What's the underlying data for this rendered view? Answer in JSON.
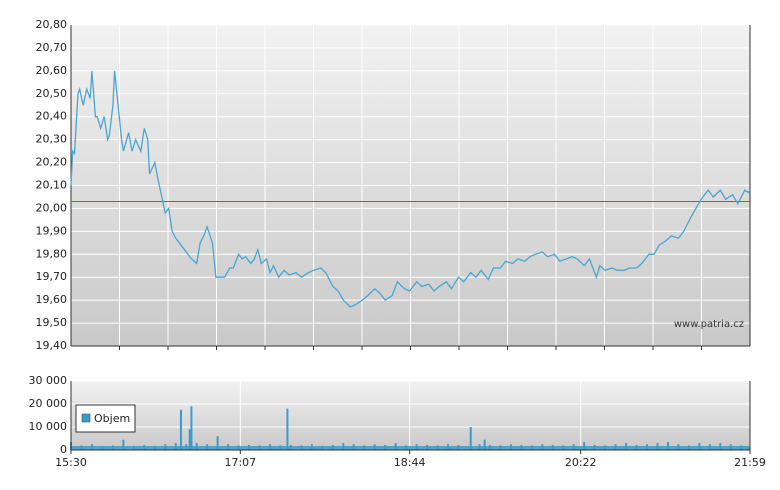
{
  "chart_data": [
    {
      "type": "line",
      "xlim": [
        930,
        1319
      ],
      "ylim": [
        19.4,
        20.8
      ],
      "yticks": [
        {
          "value": 19.4,
          "label": "19,40"
        },
        {
          "value": 19.5,
          "label": "19,50"
        },
        {
          "value": 19.6,
          "label": "19,60"
        },
        {
          "value": 19.7,
          "label": "19,70"
        },
        {
          "value": 19.8,
          "label": "19,80"
        },
        {
          "value": 19.9,
          "label": "19,90"
        },
        {
          "value": 20.0,
          "label": "20,00"
        },
        {
          "value": 20.1,
          "label": "20,10"
        },
        {
          "value": 20.2,
          "label": "20,20"
        },
        {
          "value": 20.3,
          "label": "20,30"
        },
        {
          "value": 20.4,
          "label": "20,40"
        },
        {
          "value": 20.5,
          "label": "20,50"
        },
        {
          "value": 20.6,
          "label": "20,60"
        },
        {
          "value": 20.7,
          "label": "20,70"
        },
        {
          "value": 20.8,
          "label": "20,80"
        }
      ],
      "grid": true,
      "reference_line": {
        "value": 20.03,
        "color": "#d9393f"
      },
      "watermark": "www.patria.cz",
      "series": [
        {
          "color": "#4aa6d2",
          "x": [
            930,
            931,
            932,
            934,
            935,
            937,
            939,
            941,
            942,
            944,
            945,
            947,
            949,
            951,
            952,
            954,
            955,
            957,
            959,
            960,
            963,
            965,
            967,
            970,
            972,
            974,
            975,
            978,
            980,
            982,
            984,
            986,
            988,
            990,
            992,
            995,
            997,
            999,
            1002,
            1004,
            1006,
            1008,
            1011,
            1013,
            1015,
            1018,
            1021,
            1023,
            1026,
            1028,
            1030,
            1033,
            1035,
            1037,
            1039,
            1042,
            1044,
            1046,
            1049,
            1052,
            1055,
            1059,
            1062,
            1066,
            1069,
            1073,
            1076,
            1080,
            1083,
            1086,
            1090,
            1093,
            1097,
            1100,
            1104,
            1107,
            1110,
            1114,
            1117,
            1121,
            1124,
            1128,
            1131,
            1135,
            1138,
            1141,
            1145,
            1148,
            1152,
            1155,
            1159,
            1162,
            1165,
            1169,
            1172,
            1176,
            1179,
            1183,
            1186,
            1190,
            1193,
            1196,
            1200,
            1203,
            1207,
            1210,
            1214,
            1217,
            1220,
            1224,
            1227,
            1231,
            1233,
            1236,
            1240,
            1243,
            1247,
            1250,
            1254,
            1257,
            1261,
            1264,
            1267,
            1271,
            1274,
            1278,
            1281,
            1285,
            1288,
            1291,
            1295,
            1298,
            1302,
            1305,
            1309,
            1312,
            1316,
            1318,
            1319
          ],
          "values": [
            20.1,
            20.25,
            20.24,
            20.5,
            20.52,
            20.45,
            20.52,
            20.48,
            20.6,
            20.4,
            20.4,
            20.35,
            20.4,
            20.3,
            20.32,
            20.45,
            20.6,
            20.45,
            20.3,
            20.25,
            20.33,
            20.25,
            20.3,
            20.25,
            20.35,
            20.3,
            20.15,
            20.2,
            20.12,
            20.05,
            19.98,
            20.0,
            19.9,
            19.87,
            19.85,
            19.82,
            19.8,
            19.78,
            19.76,
            19.85,
            19.88,
            19.92,
            19.85,
            19.7,
            19.7,
            19.7,
            19.74,
            19.74,
            19.8,
            19.78,
            19.79,
            19.76,
            19.78,
            19.82,
            19.76,
            19.78,
            19.72,
            19.75,
            19.7,
            19.73,
            19.71,
            19.72,
            19.7,
            19.72,
            19.73,
            19.74,
            19.72,
            19.66,
            19.64,
            19.6,
            19.57,
            19.58,
            19.6,
            19.62,
            19.65,
            19.63,
            19.6,
            19.62,
            19.68,
            19.65,
            19.64,
            19.68,
            19.66,
            19.67,
            19.64,
            19.66,
            19.68,
            19.65,
            19.7,
            19.68,
            19.72,
            19.7,
            19.73,
            19.69,
            19.74,
            19.74,
            19.77,
            19.76,
            19.78,
            19.77,
            19.79,
            19.8,
            19.81,
            19.79,
            19.8,
            19.77,
            19.78,
            19.79,
            19.78,
            19.75,
            19.78,
            19.7,
            19.75,
            19.73,
            19.74,
            19.73,
            19.73,
            19.74,
            19.74,
            19.76,
            19.8,
            19.8,
            19.84,
            19.86,
            19.88,
            19.87,
            19.9,
            19.96,
            20.0,
            20.04,
            20.08,
            20.05,
            20.08,
            20.04,
            20.06,
            20.02,
            20.08,
            20.07,
            20.08
          ]
        }
      ]
    },
    {
      "type": "bar",
      "xlim": [
        930,
        1319
      ],
      "ylim": [
        0,
        30000
      ],
      "yticks": [
        0,
        {
          "value": 10000,
          "label": "10 000"
        },
        {
          "value": 20000,
          "label": "20 000"
        },
        {
          "value": 30000,
          "label": "30 000"
        }
      ],
      "xticks": [
        {
          "value": 930,
          "label": "15:30"
        },
        {
          "value": 1027,
          "label": "17:07"
        },
        {
          "value": 1124,
          "label": "18:44"
        },
        {
          "value": 1222,
          "label": "20:22"
        },
        {
          "value": 1319,
          "label": "21:59"
        }
      ],
      "grid": true,
      "legend": "top-left",
      "series": [
        {
          "name": "Objem",
          "color": "#3b9ccc",
          "x": [
            930,
            936,
            942,
            948,
            954,
            960,
            966,
            972,
            978,
            984,
            990,
            993,
            996,
            998,
            999,
            1002,
            1008,
            1014,
            1020,
            1026,
            1032,
            1038,
            1044,
            1050,
            1054,
            1056,
            1062,
            1068,
            1074,
            1080,
            1086,
            1092,
            1098,
            1104,
            1110,
            1116,
            1122,
            1128,
            1134,
            1140,
            1146,
            1152,
            1159,
            1164,
            1167,
            1170,
            1176,
            1182,
            1188,
            1194,
            1200,
            1206,
            1212,
            1218,
            1224,
            1230,
            1236,
            1242,
            1248,
            1254,
            1260,
            1266,
            1272,
            1278,
            1284,
            1290,
            1296,
            1302,
            1308,
            1314
          ],
          "values": [
            3500,
            2000,
            2500,
            1500,
            2000,
            4500,
            1800,
            2200,
            1600,
            2500,
            3000,
            17500,
            2500,
            9000,
            19000,
            3000,
            2500,
            6000,
            2500,
            2000,
            2200,
            2000,
            2500,
            2000,
            18000,
            2200,
            2000,
            2500,
            1800,
            2200,
            3000,
            2500,
            2000,
            2500,
            2200,
            3000,
            2000,
            2500,
            2200,
            2000,
            2500,
            2200,
            10000,
            2500,
            4500,
            2200,
            2000,
            2500,
            2200,
            2000,
            2500,
            2200,
            2000,
            2500,
            3500,
            2200,
            2000,
            2500,
            3000,
            2200,
            2500,
            3000,
            3500,
            2500,
            2000,
            3000,
            2500,
            3000,
            2500,
            2000
          ]
        }
      ]
    }
  ]
}
